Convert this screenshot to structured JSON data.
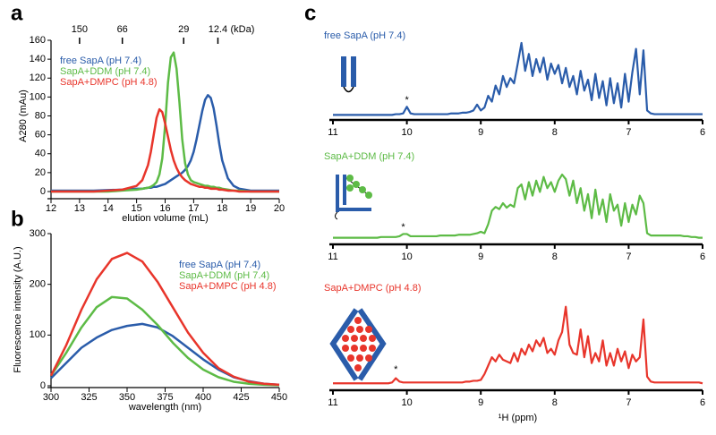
{
  "chart_data": [
    {
      "type": "line",
      "panel": "a",
      "xlabel": "elution volume (mL)",
      "ylabel": "A280 (mAu)",
      "xlim": [
        12,
        20
      ],
      "xticks": [
        12,
        13,
        14,
        15,
        16,
        17,
        18,
        19,
        20
      ],
      "ylim": [
        0,
        160
      ],
      "yticks": [
        0,
        20,
        40,
        60,
        80,
        100,
        120,
        140,
        160
      ],
      "x2label": "(kDa)",
      "x2ticks": [
        {
          "value": 13,
          "label": "150"
        },
        {
          "value": 14.5,
          "label": "66"
        },
        {
          "value": 16.65,
          "label": "29"
        },
        {
          "value": 17.85,
          "label": "12.4"
        }
      ],
      "legend": "upper left",
      "x": [
        12,
        12.5,
        13,
        13.5,
        14,
        14.5,
        15,
        15.2,
        15.4,
        15.5,
        15.6,
        15.7,
        15.8,
        15.9,
        16,
        16.1,
        16.2,
        16.3,
        16.4,
        16.5,
        16.6,
        16.7,
        16.8,
        16.9,
        17,
        17.1,
        17.2,
        17.3,
        17.4,
        17.5,
        17.6,
        17.7,
        17.8,
        17.9,
        18,
        18.2,
        18.4,
        18.6,
        19,
        19.5,
        20
      ],
      "series": [
        {
          "name": "free SapA (pH 7.4)",
          "color": "#2a5caa",
          "values": [
            1,
            1,
            1,
            1,
            1.5,
            2,
            3,
            3,
            4,
            4,
            5,
            5,
            6,
            7,
            8,
            10,
            12,
            14,
            16,
            18,
            20,
            23,
            27,
            33,
            42,
            55,
            70,
            85,
            97,
            102,
            99,
            88,
            70,
            50,
            33,
            14,
            6,
            3,
            1,
            1,
            1
          ]
        },
        {
          "name": "SapA+DDM (pH 7.4)",
          "color": "#5dbb46",
          "values": [
            0,
            0,
            0,
            0,
            0,
            1,
            2,
            3,
            4,
            5,
            7,
            10,
            18,
            35,
            70,
            115,
            142,
            147,
            130,
            95,
            55,
            30,
            18,
            12,
            10,
            9,
            8,
            7,
            6,
            6,
            5,
            5,
            4,
            4,
            3,
            2,
            1,
            1,
            0,
            0,
            0
          ]
        },
        {
          "name": "SapA+DMPC (pH 4.8)",
          "color": "#e8352b",
          "values": [
            0,
            0,
            0,
            0,
            1,
            2,
            6,
            12,
            28,
            42,
            60,
            78,
            87,
            84,
            72,
            58,
            44,
            33,
            25,
            19,
            15,
            12,
            10,
            8,
            7,
            6,
            5,
            5,
            4,
            4,
            3,
            3,
            3,
            2,
            2,
            1,
            1,
            0,
            0,
            0,
            0
          ]
        }
      ]
    },
    {
      "type": "line",
      "panel": "b",
      "xlabel": "wavelength (nm)",
      "ylabel": "Fluorescence intensity (A.U.)",
      "xlim": [
        300,
        450
      ],
      "xticks": [
        300,
        325,
        350,
        375,
        400,
        425,
        450
      ],
      "ylim": [
        0,
        300
      ],
      "yticks": [
        0,
        100,
        200,
        300
      ],
      "legend": "upper right",
      "x": [
        300,
        310,
        320,
        330,
        340,
        350,
        360,
        370,
        380,
        390,
        400,
        410,
        420,
        430,
        440,
        450
      ],
      "series": [
        {
          "name": "free SapA (pH 7.4)",
          "color": "#2a5caa",
          "values": [
            15,
            45,
            75,
            95,
            110,
            118,
            122,
            115,
            98,
            75,
            52,
            32,
            17,
            9,
            4,
            2
          ]
        },
        {
          "name": "SapA+DDM (pH 7.4)",
          "color": "#5dbb46",
          "values": [
            20,
            65,
            115,
            155,
            175,
            172,
            150,
            120,
            85,
            55,
            32,
            17,
            8,
            4,
            2,
            1
          ]
        },
        {
          "name": "SapA+DMPC (pH 4.8)",
          "color": "#e8352b",
          "values": [
            20,
            80,
            150,
            210,
            250,
            262,
            245,
            205,
            155,
            105,
            65,
            35,
            18,
            8,
            4,
            2
          ]
        }
      ]
    },
    {
      "type": "line",
      "panel": "c",
      "title": "free SapA (pH 7.4)",
      "color": "#2a5caa",
      "xlim": [
        11,
        6
      ],
      "xticks": [
        11,
        10,
        9,
        8,
        7,
        6
      ],
      "ylim": [
        0,
        100
      ],
      "annotations": [
        {
          "text": "*",
          "x": 10,
          "y": 22
        }
      ],
      "x": [
        11,
        10.95,
        10.9,
        10.85,
        10.8,
        10.75,
        10.7,
        10.65,
        10.6,
        10.55,
        10.5,
        10.45,
        10.4,
        10.35,
        10.3,
        10.25,
        10.2,
        10.15,
        10.1,
        10.05,
        10,
        9.95,
        9.9,
        9.85,
        9.8,
        9.75,
        9.7,
        9.65,
        9.6,
        9.55,
        9.5,
        9.45,
        9.4,
        9.35,
        9.3,
        9.25,
        9.2,
        9.15,
        9.1,
        9.05,
        9,
        8.95,
        8.9,
        8.85,
        8.8,
        8.75,
        8.7,
        8.65,
        8.6,
        8.55,
        8.5,
        8.45,
        8.4,
        8.35,
        8.3,
        8.25,
        8.2,
        8.15,
        8.1,
        8.05,
        8,
        7.95,
        7.9,
        7.85,
        7.8,
        7.75,
        7.7,
        7.65,
        7.6,
        7.55,
        7.5,
        7.45,
        7.4,
        7.35,
        7.3,
        7.25,
        7.2,
        7.15,
        7.1,
        7.05,
        7,
        6.95,
        6.9,
        6.85,
        6.8,
        6.75,
        6.7,
        6.65,
        6.6,
        6.55,
        6.5,
        6.45,
        6.4,
        6.35,
        6.3,
        6.25,
        6.2,
        6.15,
        6.1,
        6.05,
        6
      ],
      "values": [
        2,
        2,
        2,
        2,
        2,
        2,
        2,
        2,
        2,
        2,
        2,
        2,
        2,
        2,
        2,
        2,
        2,
        3,
        3,
        4,
        13,
        4,
        3,
        3,
        3,
        3,
        3,
        3,
        3,
        3,
        3,
        3,
        4,
        4,
        4,
        5,
        5,
        6,
        8,
        16,
        8,
        12,
        28,
        20,
        42,
        30,
        55,
        40,
        52,
        45,
        72,
        100,
        62,
        85,
        55,
        78,
        60,
        80,
        50,
        72,
        58,
        70,
        45,
        66,
        40,
        55,
        30,
        62,
        35,
        50,
        22,
        58,
        25,
        48,
        15,
        52,
        18,
        45,
        12,
        58,
        20,
        60,
        92,
        30,
        90,
        8,
        4,
        3,
        3,
        3,
        3,
        3,
        3,
        3,
        3,
        3,
        3,
        3,
        3,
        3,
        3
      ]
    },
    {
      "type": "line",
      "title": "SapA+DDM (pH 7.4)",
      "color": "#5dbb46",
      "xlim": [
        11,
        6
      ],
      "xticks": [
        11,
        10,
        9,
        8,
        7,
        6
      ],
      "ylim": [
        0,
        100
      ],
      "annotations": [
        {
          "text": "*",
          "x": 10.05,
          "y": 18
        }
      ],
      "x": [
        11,
        10.95,
        10.9,
        10.85,
        10.8,
        10.75,
        10.7,
        10.65,
        10.6,
        10.55,
        10.5,
        10.45,
        10.4,
        10.35,
        10.3,
        10.25,
        10.2,
        10.15,
        10.1,
        10.05,
        10,
        9.95,
        9.9,
        9.85,
        9.8,
        9.75,
        9.7,
        9.65,
        9.6,
        9.55,
        9.5,
        9.45,
        9.4,
        9.35,
        9.3,
        9.25,
        9.2,
        9.15,
        9.1,
        9.05,
        9,
        8.95,
        8.9,
        8.85,
        8.8,
        8.75,
        8.7,
        8.65,
        8.6,
        8.55,
        8.5,
        8.45,
        8.4,
        8.35,
        8.3,
        8.25,
        8.2,
        8.15,
        8.1,
        8.05,
        8,
        7.95,
        7.9,
        7.85,
        7.8,
        7.75,
        7.7,
        7.65,
        7.6,
        7.55,
        7.5,
        7.45,
        7.4,
        7.35,
        7.3,
        7.25,
        7.2,
        7.15,
        7.1,
        7.05,
        7,
        6.95,
        6.9,
        6.85,
        6.8,
        6.75,
        6.7,
        6.65,
        6.6,
        6.55,
        6.5,
        6.45,
        6.4,
        6.35,
        6.3,
        6.25,
        6.2,
        6.15,
        6.1,
        6.05,
        6
      ],
      "values": [
        4,
        4,
        4,
        4,
        4,
        4,
        4,
        4,
        4,
        4,
        4,
        4,
        4,
        5,
        5,
        5,
        5,
        5,
        6,
        9,
        9,
        6,
        6,
        6,
        6,
        6,
        6,
        6,
        6,
        7,
        7,
        7,
        7,
        7,
        8,
        8,
        8,
        8,
        9,
        10,
        12,
        10,
        22,
        40,
        45,
        42,
        50,
        44,
        48,
        45,
        70,
        75,
        55,
        78,
        60,
        80,
        65,
        85,
        70,
        78,
        65,
        80,
        88,
        82,
        60,
        80,
        50,
        70,
        40,
        62,
        30,
        68,
        35,
        55,
        25,
        62,
        40,
        48,
        20,
        50,
        25,
        48,
        35,
        60,
        50,
        10,
        7,
        7,
        7,
        7,
        7,
        7,
        7,
        7,
        7,
        6,
        6,
        5,
        5,
        4,
        4
      ]
    },
    {
      "type": "line",
      "title": "SapA+DMPC (pH 4.8)",
      "color": "#e8352b",
      "xlabel": "¹H (ppm)",
      "xlim": [
        11,
        6
      ],
      "xticks": [
        11,
        10,
        9,
        8,
        7,
        6
      ],
      "ylim": [
        0,
        100
      ],
      "annotations": [
        {
          "text": "*",
          "x": 10.15,
          "y": 20
        }
      ],
      "x": [
        11,
        10.95,
        10.9,
        10.85,
        10.8,
        10.75,
        10.7,
        10.65,
        10.6,
        10.55,
        10.5,
        10.45,
        10.4,
        10.35,
        10.3,
        10.25,
        10.2,
        10.15,
        10.1,
        10.05,
        10,
        9.95,
        9.9,
        9.85,
        9.8,
        9.75,
        9.7,
        9.65,
        9.6,
        9.55,
        9.5,
        9.45,
        9.4,
        9.35,
        9.3,
        9.25,
        9.2,
        9.15,
        9.1,
        9.05,
        9,
        8.95,
        8.9,
        8.85,
        8.8,
        8.75,
        8.7,
        8.65,
        8.6,
        8.55,
        8.5,
        8.45,
        8.4,
        8.35,
        8.3,
        8.25,
        8.2,
        8.15,
        8.1,
        8.05,
        8,
        7.95,
        7.9,
        7.85,
        7.8,
        7.75,
        7.7,
        7.65,
        7.6,
        7.55,
        7.5,
        7.45,
        7.4,
        7.35,
        7.3,
        7.25,
        7.2,
        7.15,
        7.1,
        7.05,
        7,
        6.95,
        6.9,
        6.85,
        6.8,
        6.75,
        6.7,
        6.65,
        6.6,
        6.55,
        6.5,
        6.45,
        6.4,
        6.35,
        6.3,
        6.25,
        6.2,
        6.15,
        6.1,
        6.05,
        6
      ],
      "values": [
        4,
        4,
        4,
        4,
        4,
        4,
        4,
        4,
        4,
        4,
        4,
        4,
        4,
        4,
        4,
        4,
        5,
        10,
        6,
        5,
        5,
        5,
        5,
        5,
        5,
        5,
        5,
        5,
        5,
        5,
        5,
        5,
        5,
        5,
        5,
        5,
        6,
        6,
        7,
        7,
        8,
        15,
        25,
        35,
        30,
        38,
        32,
        30,
        28,
        40,
        30,
        45,
        38,
        50,
        42,
        55,
        48,
        58,
        40,
        45,
        38,
        55,
        65,
        95,
        50,
        40,
        38,
        68,
        35,
        60,
        28,
        40,
        30,
        55,
        25,
        40,
        25,
        45,
        30,
        42,
        22,
        38,
        30,
        35,
        80,
        12,
        6,
        5,
        5,
        5,
        5,
        5,
        5,
        5,
        5,
        5,
        5,
        5,
        5,
        5,
        4
      ]
    }
  ]
}
